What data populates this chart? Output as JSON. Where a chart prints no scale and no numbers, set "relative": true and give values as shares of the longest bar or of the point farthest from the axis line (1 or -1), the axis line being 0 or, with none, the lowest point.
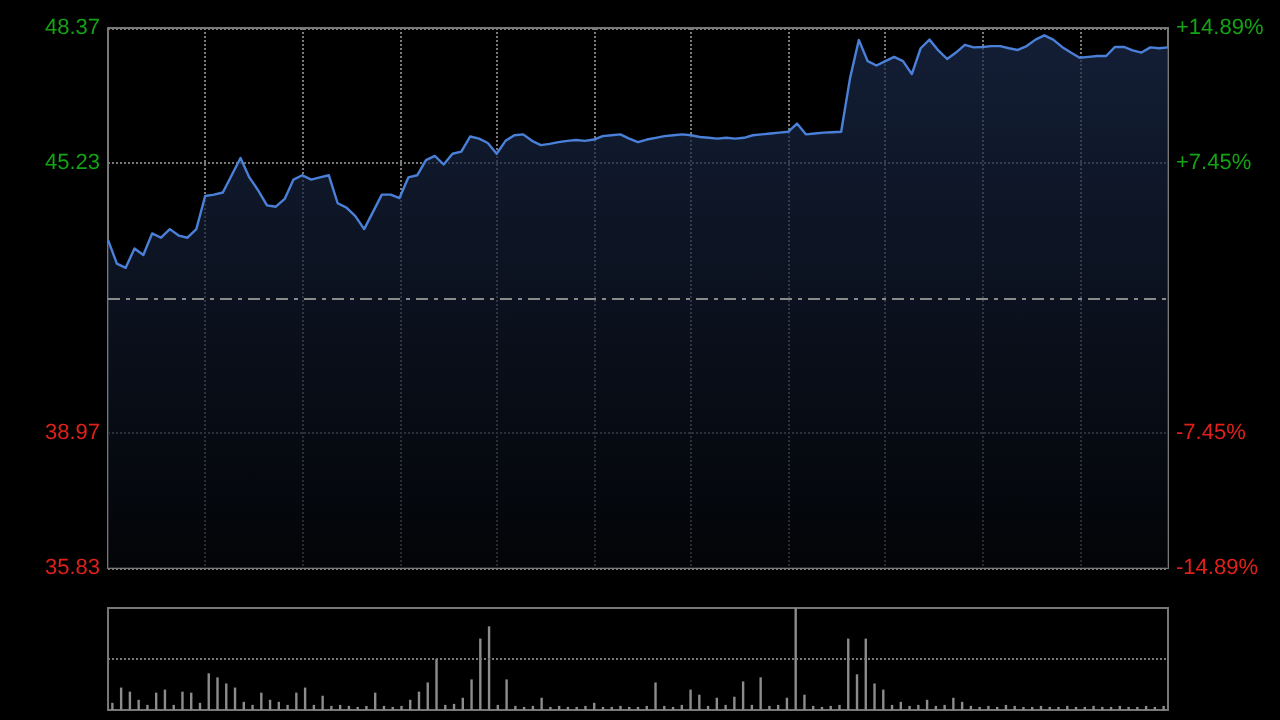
{
  "chart_data": [
    {
      "type": "area",
      "color": "#4a80d8",
      "grid": true,
      "categories": [
        null,
        null,
        null,
        null,
        null,
        null,
        null,
        null,
        null,
        null,
        null,
        null,
        null,
        null,
        null,
        null,
        null,
        null,
        null,
        null,
        null,
        null,
        null,
        null,
        null,
        null,
        null,
        null,
        null,
        null,
        null,
        null,
        null,
        null,
        null,
        null,
        null,
        null,
        null,
        null,
        null,
        null,
        null,
        null,
        null,
        null,
        null,
        null,
        null,
        null,
        null,
        null,
        null,
        null,
        null,
        null,
        null,
        null,
        null,
        null,
        null,
        null,
        null,
        null,
        null,
        null,
        null,
        null,
        null,
        null,
        null,
        null,
        null,
        null,
        null,
        null,
        null,
        null,
        null,
        null,
        null,
        null,
        null,
        null,
        null,
        null,
        null,
        null,
        null,
        null,
        null,
        null,
        null,
        null,
        null,
        null,
        null,
        null,
        null,
        null,
        null,
        null,
        null,
        null,
        null,
        null,
        null,
        null,
        null,
        null,
        null,
        null,
        null,
        null,
        null,
        null,
        null,
        null,
        null,
        null,
        null
      ],
      "values": [
        43.45,
        42.9,
        42.8,
        43.25,
        43.1,
        43.6,
        43.5,
        43.7,
        43.55,
        43.5,
        43.7,
        44.47,
        44.5,
        44.55,
        44.95,
        45.35,
        44.9,
        44.6,
        44.25,
        44.22,
        44.4,
        44.85,
        44.95,
        44.85,
        44.9,
        44.95,
        44.3,
        44.2,
        44.0,
        43.7,
        44.1,
        44.5,
        44.5,
        44.42,
        44.9,
        44.95,
        45.3,
        45.4,
        45.2,
        45.45,
        45.5,
        45.85,
        45.8,
        45.7,
        45.45,
        45.75,
        45.88,
        45.9,
        45.75,
        45.65,
        45.68,
        45.72,
        45.75,
        45.77,
        45.75,
        45.78,
        45.86,
        45.88,
        45.9,
        45.8,
        45.72,
        45.78,
        45.82,
        45.86,
        45.88,
        45.9,
        45.88,
        45.84,
        45.82,
        45.8,
        45.82,
        45.8,
        45.82,
        45.88,
        45.9,
        45.92,
        45.94,
        45.96,
        46.15,
        45.9,
        45.92,
        45.94,
        45.95,
        45.96,
        47.2,
        48.09,
        47.6,
        47.5,
        47.6,
        47.7,
        47.6,
        47.3,
        47.9,
        48.1,
        47.85,
        47.65,
        47.8,
        47.98,
        47.92,
        47.93,
        47.95,
        47.95,
        47.9,
        47.86,
        47.95,
        48.1,
        48.2,
        48.1,
        47.93,
        47.8,
        47.68,
        47.7,
        47.72,
        47.72,
        47.93,
        47.93,
        47.85,
        47.8,
        47.92,
        47.9,
        47.92
      ],
      "ylim": [
        35.83,
        48.37
      ],
      "yticks": [
        35.83,
        38.97,
        45.23,
        48.37
      ],
      "y2lim": [
        -14.89,
        14.89
      ],
      "y2ticks": [
        {
          "value": -14.89,
          "label": "-14.89%"
        },
        {
          "value": -7.45,
          "label": "-7.45%"
        },
        {
          "value": 7.45,
          "label": "+7.45%"
        },
        {
          "value": 14.89,
          "label": "+14.89%"
        }
      ],
      "ref_lines": [
        {
          "axis": "y",
          "value": 42.1,
          "line_style": "dashed",
          "color": "#8a8a8a"
        }
      ]
    },
    {
      "type": "bar",
      "relative": true,
      "color": "#8c8c8c",
      "ref_lines": [
        {
          "axis": "y",
          "value": 0.5,
          "line_style": "dotted",
          "color": "#7a7a7a"
        }
      ],
      "categories": [
        null,
        null,
        null,
        null,
        null,
        null,
        null,
        null,
        null,
        null,
        null,
        null,
        null,
        null,
        null,
        null,
        null,
        null,
        null,
        null,
        null,
        null,
        null,
        null,
        null,
        null,
        null,
        null,
        null,
        null,
        null,
        null,
        null,
        null,
        null,
        null,
        null,
        null,
        null,
        null,
        null,
        null,
        null,
        null,
        null,
        null,
        null,
        null,
        null,
        null,
        null,
        null,
        null,
        null,
        null,
        null,
        null,
        null,
        null,
        null,
        null,
        null,
        null,
        null,
        null,
        null,
        null,
        null,
        null,
        null,
        null,
        null,
        null,
        null,
        null,
        null,
        null,
        null,
        null,
        null,
        null,
        null,
        null,
        null,
        null,
        null,
        null,
        null,
        null,
        null,
        null,
        null,
        null,
        null,
        null,
        null,
        null,
        null,
        null,
        null,
        null,
        null,
        null,
        null,
        null,
        null,
        null,
        null,
        null,
        null,
        null,
        null,
        null,
        null,
        null,
        null,
        null,
        null,
        null,
        null,
        null
      ],
      "values": [
        0.07,
        0.22,
        0.18,
        0.1,
        0.05,
        0.17,
        0.2,
        0.05,
        0.18,
        0.17,
        0.07,
        0.36,
        0.32,
        0.26,
        0.22,
        0.08,
        0.05,
        0.17,
        0.1,
        0.08,
        0.05,
        0.17,
        0.22,
        0.05,
        0.14,
        0.04,
        0.05,
        0.04,
        0.03,
        0.04,
        0.17,
        0.04,
        0.03,
        0.04,
        0.1,
        0.18,
        0.27,
        0.5,
        0.05,
        0.06,
        0.12,
        0.3,
        0.7,
        0.82,
        0.05,
        0.3,
        0.04,
        0.03,
        0.04,
        0.12,
        0.03,
        0.04,
        0.03,
        0.03,
        0.04,
        0.07,
        0.03,
        0.03,
        0.04,
        0.03,
        0.03,
        0.04,
        0.27,
        0.04,
        0.03,
        0.05,
        0.2,
        0.15,
        0.04,
        0.12,
        0.05,
        0.13,
        0.28,
        0.05,
        0.32,
        0.04,
        0.05,
        0.12,
        1.0,
        0.15,
        0.04,
        0.03,
        0.04,
        0.05,
        0.7,
        0.35,
        0.7,
        0.26,
        0.2,
        0.05,
        0.08,
        0.04,
        0.05,
        0.1,
        0.04,
        0.05,
        0.12,
        0.08,
        0.04,
        0.03,
        0.04,
        0.03,
        0.05,
        0.04,
        0.03,
        0.03,
        0.04,
        0.03,
        0.03,
        0.04,
        0.03,
        0.03,
        0.04,
        0.03,
        0.03,
        0.04,
        0.03,
        0.03,
        0.04,
        0.03,
        0.04
      ]
    }
  ]
}
